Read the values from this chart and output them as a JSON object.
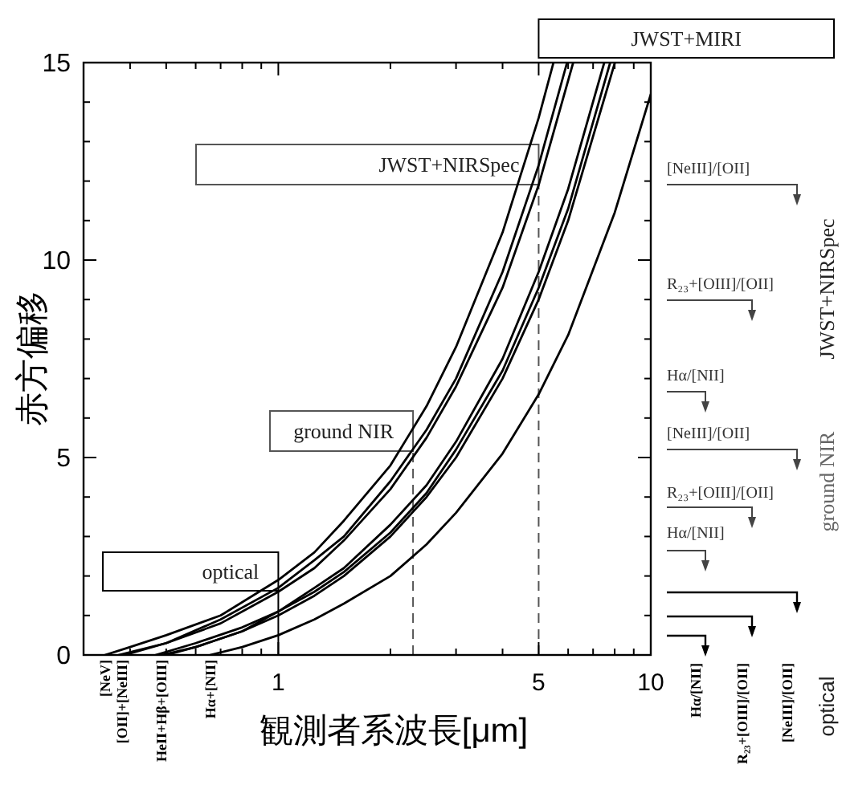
{
  "chart_data": {
    "type": "line",
    "xlabel": "観測者系波長[μm]",
    "ylabel": "赤方偏移",
    "log": "x",
    "xlim": [
      0.3,
      10
    ],
    "ylim": [
      0,
      15
    ],
    "xticks": [
      {
        "value": 0.4,
        "label": null
      },
      {
        "value": 0.5,
        "label": null
      },
      {
        "value": 0.6,
        "label": null
      },
      {
        "value": 0.7,
        "label": null
      },
      {
        "value": 0.8,
        "label": null
      },
      {
        "value": 0.9,
        "label": null
      },
      1,
      {
        "value": 2,
        "label": null
      },
      {
        "value": 3,
        "label": null
      },
      {
        "value": 4,
        "label": null
      },
      5,
      {
        "value": 6,
        "label": null
      },
      {
        "value": 7,
        "label": null
      },
      {
        "value": 8,
        "label": null
      },
      {
        "value": 9,
        "label": null
      },
      10
    ],
    "yticks": [
      0,
      {
        "value": 1,
        "label": null
      },
      {
        "value": 2,
        "label": null
      },
      {
        "value": 3,
        "label": null
      },
      {
        "value": 4,
        "label": null
      },
      5,
      {
        "value": 6,
        "label": null
      },
      {
        "value": 7,
        "label": null
      },
      {
        "value": 8,
        "label": null
      },
      {
        "value": 9,
        "label": null
      },
      10,
      {
        "value": 11,
        "label": null
      },
      {
        "value": 12,
        "label": null
      },
      {
        "value": 13,
        "label": null
      },
      {
        "value": 14,
        "label": null
      },
      15
    ],
    "grid": false,
    "marker": "none",
    "line_style": "solid",
    "series": [
      {
        "color": "#000000",
        "x": [
          0.3426,
          0.4,
          0.5,
          0.7,
          1,
          1.25,
          1.5,
          2,
          2.5,
          3,
          4,
          5,
          5.48
        ],
        "values": [
          0,
          0.2,
          0.5,
          1.0,
          1.9,
          2.6,
          3.4,
          4.8,
          6.3,
          7.8,
          10.7,
          13.6,
          15
        ]
      },
      {
        "color": "#000000",
        "x": [
          0.3727,
          0.5,
          0.7,
          1,
          1.25,
          1.5,
          2,
          2.5,
          3,
          4,
          5,
          5.96
        ],
        "values": [
          0,
          0.3,
          0.9,
          1.7,
          2.4,
          3.0,
          4.4,
          5.7,
          7.0,
          9.7,
          12.4,
          15
        ]
      },
      {
        "color": "#000000",
        "x": [
          0.3869,
          0.5,
          0.7,
          1,
          1.25,
          1.5,
          2,
          2.5,
          3,
          4,
          5,
          6.19
        ],
        "values": [
          0,
          0.3,
          0.8,
          1.6,
          2.2,
          2.9,
          4.2,
          5.5,
          6.8,
          9.3,
          11.9,
          15
        ]
      },
      {
        "color": "#000000",
        "x": [
          0.4686,
          0.6,
          0.8,
          1,
          1.25,
          1.5,
          2,
          2.5,
          3,
          4,
          5,
          6,
          7.5
        ],
        "values": [
          0,
          0.3,
          0.7,
          1.1,
          1.7,
          2.2,
          3.3,
          4.3,
          5.4,
          7.5,
          9.7,
          11.8,
          15
        ]
      },
      {
        "color": "#000000",
        "x": [
          0.4861,
          0.6,
          0.8,
          1,
          1.25,
          1.5,
          2,
          2.5,
          3,
          4,
          5,
          6,
          7.78
        ],
        "values": [
          0,
          0.2,
          0.6,
          1.1,
          1.6,
          2.1,
          3.1,
          4.1,
          5.2,
          7.2,
          9.3,
          11.3,
          15
        ]
      },
      {
        "color": "#000000",
        "x": [
          0.5007,
          0.6,
          0.8,
          1,
          1.25,
          1.5,
          2,
          2.5,
          3,
          4,
          5,
          6,
          8.01
        ],
        "values": [
          0,
          0.2,
          0.6,
          1.0,
          1.5,
          2.0,
          3.0,
          4.0,
          5.0,
          7.0,
          9.0,
          11.0,
          15
        ]
      },
      {
        "color": "#000000",
        "x": [
          0.6563,
          0.8,
          1,
          1.25,
          1.5,
          2,
          2.5,
          3,
          4,
          5,
          6,
          8,
          10
        ],
        "values": [
          0,
          0.2,
          0.5,
          0.9,
          1.3,
          2.0,
          2.8,
          3.6,
          5.1,
          6.6,
          8.1,
          11.2,
          14.2
        ]
      }
    ],
    "ref_lines": [
      {
        "axis": "x",
        "value": 1,
        "label": "optical",
        "line_style": "solid",
        "color": "#000000"
      },
      {
        "axis": "x",
        "value": 2.3,
        "label": "ground NIR",
        "line_style": "dashed",
        "color": "#555555"
      },
      {
        "axis": "x",
        "value": 5,
        "label": "JWST+NIRSpec",
        "line_style": "dashed",
        "color": "#555555"
      }
    ],
    "annotations": [
      "JWST+MIRI",
      "[NeIII]/[OII]",
      "R₂₃+[OIII]/[OII]",
      "Hα/[NII]",
      "JWST+NIRSpec",
      "[NeIII]/[OII]",
      "R₂₃+[OIII]/[OII]",
      "Hα/[NII]",
      "ground NIR",
      "Hα/[NII]",
      "R₂₃+[OIII]/[OII]",
      "[NeIII]/[OII]",
      "optical",
      {
        "text": "[NeV]",
        "x": 0.3426,
        "y": 0
      },
      {
        "text": "[OII]+[NeIII]",
        "x": 0.38,
        "y": 0
      },
      {
        "text": "HeII+Hβ+[OIII]",
        "x": 0.486,
        "y": 0
      },
      {
        "text": "Hα+[NII]",
        "x": 0.657,
        "y": 0
      }
    ]
  }
}
